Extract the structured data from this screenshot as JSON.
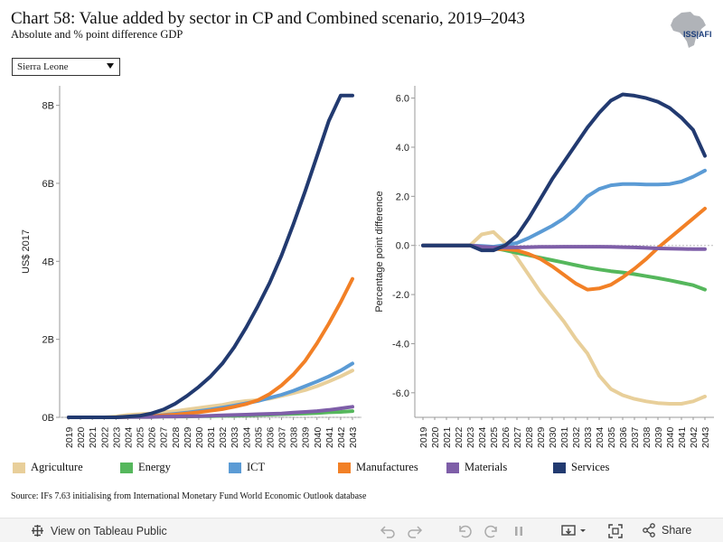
{
  "title": "Chart 58: Value added by sector in CP and Combined scenario, 2019–2043",
  "subtitle": "Absolute and % point difference GDP",
  "dropdown": {
    "selected": "Sierra Leone"
  },
  "logo_text": "ISS|AFI",
  "source": "Source: IFs 7.63 initialising from International Monetary Fund World Economic Outlook database",
  "footer": {
    "view_label": "View on Tableau Public",
    "share_label": "Share"
  },
  "legend": [
    {
      "label": "Agriculture",
      "color": "#e8cf9a"
    },
    {
      "label": "Energy",
      "color": "#55b75c"
    },
    {
      "label": "ICT",
      "color": "#5b9bd5"
    },
    {
      "label": "Manufactures",
      "color": "#f28026"
    },
    {
      "label": "Materials",
      "color": "#7e5ea8"
    },
    {
      "label": "Services",
      "color": "#223a70"
    }
  ],
  "chart_data": [
    {
      "type": "line",
      "ylabel": "US$ 2017",
      "ylim": [
        0,
        8.5
      ],
      "yticks": [
        0,
        2,
        4,
        6,
        8
      ],
      "ytick_labels": [
        "0B",
        "2B",
        "4B",
        "6B",
        "8B"
      ],
      "x": [
        "2019",
        "2020",
        "2021",
        "2022",
        "2023",
        "2024",
        "2025",
        "2026",
        "2027",
        "2028",
        "2029",
        "2030",
        "2031",
        "2032",
        "2033",
        "2034",
        "2035",
        "2036",
        "2037",
        "2038",
        "2039",
        "2040",
        "2041",
        "2042",
        "2043"
      ],
      "series": [
        {
          "name": "Agriculture",
          "color": "#e8cf9a",
          "values": [
            0.0,
            0.0,
            0.0,
            0.0,
            0.02,
            0.06,
            0.08,
            0.1,
            0.13,
            0.16,
            0.2,
            0.24,
            0.28,
            0.32,
            0.38,
            0.42,
            0.44,
            0.48,
            0.55,
            0.62,
            0.7,
            0.8,
            0.92,
            1.05,
            1.2
          ]
        },
        {
          "name": "Energy",
          "color": "#55b75c",
          "values": [
            0.0,
            0.0,
            0.0,
            0.0,
            0.0,
            0.01,
            0.01,
            0.01,
            0.02,
            0.02,
            0.02,
            0.03,
            0.03,
            0.04,
            0.04,
            0.05,
            0.06,
            0.07,
            0.08,
            0.09,
            0.1,
            0.11,
            0.13,
            0.14,
            0.16
          ]
        },
        {
          "name": "ICT",
          "color": "#5b9bd5",
          "values": [
            0.0,
            0.0,
            0.0,
            0.0,
            0.0,
            0.01,
            0.02,
            0.04,
            0.06,
            0.09,
            0.12,
            0.16,
            0.2,
            0.25,
            0.3,
            0.36,
            0.42,
            0.5,
            0.58,
            0.68,
            0.8,
            0.92,
            1.05,
            1.2,
            1.38
          ]
        },
        {
          "name": "Manufactures",
          "color": "#f28026",
          "values": [
            0.0,
            0.0,
            0.0,
            0.0,
            0.0,
            0.01,
            0.02,
            0.03,
            0.05,
            0.07,
            0.1,
            0.13,
            0.17,
            0.21,
            0.27,
            0.34,
            0.44,
            0.6,
            0.82,
            1.1,
            1.45,
            1.9,
            2.4,
            2.95,
            3.55
          ]
        },
        {
          "name": "Materials",
          "color": "#7e5ea8",
          "values": [
            0.0,
            0.0,
            0.0,
            0.0,
            0.0,
            0.01,
            0.01,
            0.01,
            0.02,
            0.02,
            0.03,
            0.03,
            0.04,
            0.05,
            0.06,
            0.07,
            0.08,
            0.09,
            0.1,
            0.12,
            0.14,
            0.16,
            0.19,
            0.23,
            0.27
          ]
        },
        {
          "name": "Services",
          "color": "#223a70",
          "values": [
            0.0,
            0.0,
            0.0,
            0.0,
            0.0,
            0.02,
            0.04,
            0.1,
            0.2,
            0.35,
            0.55,
            0.78,
            1.05,
            1.38,
            1.8,
            2.3,
            2.85,
            3.45,
            4.15,
            4.95,
            5.8,
            6.7,
            7.6,
            8.25,
            8.25
          ]
        }
      ]
    },
    {
      "type": "line",
      "ylabel": "Percentage point difference",
      "ylim": [
        -7,
        6.5
      ],
      "yticks": [
        6,
        4,
        2,
        0,
        -2,
        -4,
        -6
      ],
      "ytick_labels": [
        "6.0",
        "4.0",
        "2.0",
        "0.0",
        "-2.0",
        "-4.0",
        "-6.0"
      ],
      "x": [
        "2019",
        "2020",
        "2021",
        "2022",
        "2023",
        "2024",
        "2025",
        "2026",
        "2027",
        "2028",
        "2029",
        "2030",
        "2031",
        "2032",
        "2033",
        "2034",
        "2035",
        "2036",
        "2037",
        "2038",
        "2039",
        "2040",
        "2041",
        "2042",
        "2043"
      ],
      "series": [
        {
          "name": "Agriculture",
          "color": "#e8cf9a",
          "values": [
            0.0,
            0.0,
            0.0,
            0.0,
            0.0,
            0.45,
            0.55,
            0.1,
            -0.5,
            -1.2,
            -1.9,
            -2.5,
            -3.1,
            -3.8,
            -4.4,
            -5.3,
            -5.85,
            -6.1,
            -6.25,
            -6.35,
            -6.42,
            -6.45,
            -6.45,
            -6.35,
            -6.15
          ]
        },
        {
          "name": "Energy",
          "color": "#55b75c",
          "values": [
            0.0,
            0.0,
            0.0,
            0.0,
            0.0,
            -0.05,
            -0.1,
            -0.2,
            -0.3,
            -0.4,
            -0.5,
            -0.6,
            -0.7,
            -0.8,
            -0.9,
            -0.98,
            -1.05,
            -1.1,
            -1.17,
            -1.25,
            -1.33,
            -1.42,
            -1.52,
            -1.62,
            -1.8
          ]
        },
        {
          "name": "ICT",
          "color": "#5b9bd5",
          "values": [
            0.0,
            0.0,
            0.0,
            0.0,
            0.0,
            -0.02,
            -0.05,
            0.02,
            0.1,
            0.3,
            0.55,
            0.8,
            1.1,
            1.5,
            2.0,
            2.3,
            2.45,
            2.5,
            2.5,
            2.48,
            2.48,
            2.5,
            2.6,
            2.8,
            3.05
          ]
        },
        {
          "name": "Manufactures",
          "color": "#f28026",
          "values": [
            0.0,
            0.0,
            0.0,
            0.0,
            0.0,
            -0.1,
            -0.15,
            -0.15,
            -0.2,
            -0.35,
            -0.55,
            -0.85,
            -1.2,
            -1.55,
            -1.8,
            -1.75,
            -1.6,
            -1.3,
            -0.95,
            -0.55,
            -0.1,
            0.3,
            0.7,
            1.1,
            1.5
          ]
        },
        {
          "name": "Materials",
          "color": "#7e5ea8",
          "values": [
            0.0,
            0.0,
            0.0,
            0.0,
            0.0,
            -0.05,
            -0.08,
            -0.08,
            -0.08,
            -0.07,
            -0.06,
            -0.06,
            -0.05,
            -0.05,
            -0.05,
            -0.05,
            -0.06,
            -0.07,
            -0.08,
            -0.1,
            -0.12,
            -0.13,
            -0.14,
            -0.15,
            -0.15
          ]
        },
        {
          "name": "Services",
          "color": "#223a70",
          "values": [
            0.0,
            0.0,
            0.0,
            0.0,
            0.0,
            -0.2,
            -0.2,
            0.0,
            0.4,
            1.1,
            1.9,
            2.7,
            3.4,
            4.1,
            4.8,
            5.4,
            5.9,
            6.15,
            6.1,
            6.0,
            5.85,
            5.6,
            5.2,
            4.7,
            3.65
          ]
        }
      ]
    }
  ]
}
